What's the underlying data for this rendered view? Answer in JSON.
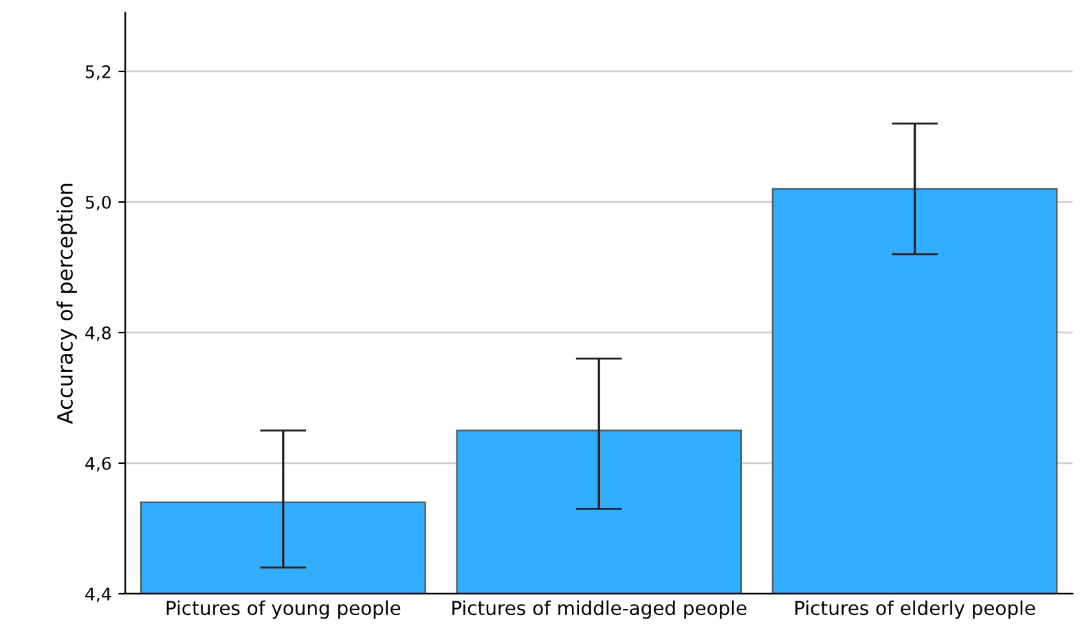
{
  "chart_data": {
    "type": "bar",
    "ylabel": "Accuracy of perception",
    "categories": [
      "Pictures of young people",
      "Pictures of middle-aged people",
      "Pictures of elderly people"
    ],
    "values": [
      4.54,
      4.65,
      5.02
    ],
    "color": "#33adff",
    "errors": [
      [
        4.44,
        4.65
      ],
      [
        4.53,
        4.76
      ],
      [
        4.92,
        5.12
      ]
    ],
    "ylim": [
      4.4,
      5.29
    ],
    "yticks": [
      {
        "value": 4.4,
        "label": "4,4"
      },
      {
        "value": 4.6,
        "label": "4,6"
      },
      {
        "value": 4.8,
        "label": "4,8"
      },
      {
        "value": 5.0,
        "label": "5,0"
      },
      {
        "value": 5.2,
        "label": "5,2"
      }
    ],
    "grid": "y"
  }
}
